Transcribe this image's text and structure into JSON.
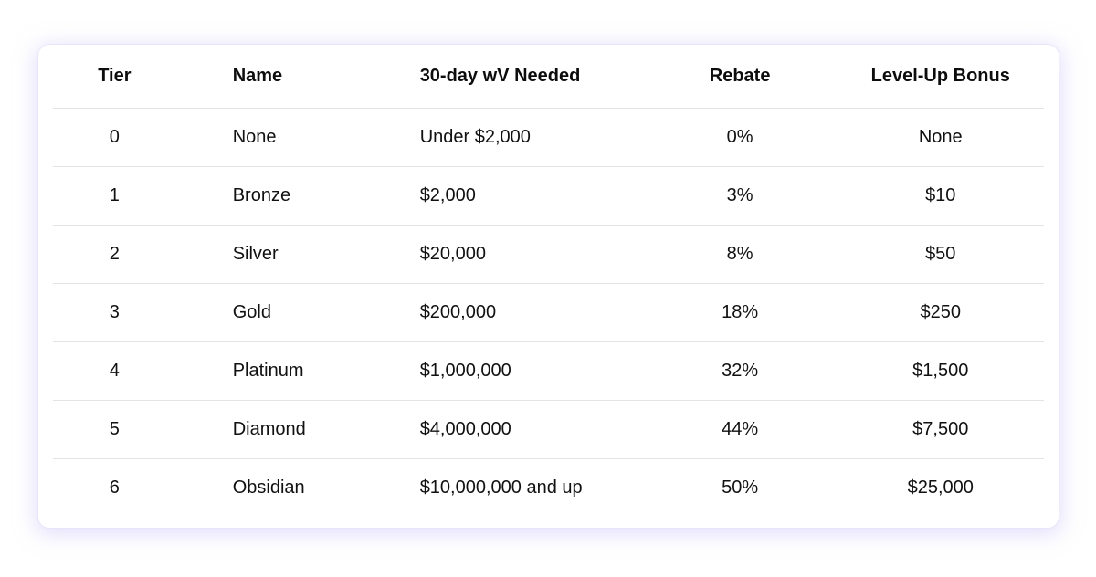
{
  "table": {
    "headers": {
      "tier": "Tier",
      "name": "Name",
      "wv": "30-day wV Needed",
      "rebate": "Rebate",
      "bonus": "Level-Up Bonus"
    },
    "rows": [
      {
        "tier": "0",
        "name": "None",
        "wv": "Under $2,000",
        "rebate": "0%",
        "bonus": "None"
      },
      {
        "tier": "1",
        "name": "Bronze",
        "wv": "$2,000",
        "rebate": "3%",
        "bonus": "$10"
      },
      {
        "tier": "2",
        "name": "Silver",
        "wv": "$20,000",
        "rebate": "8%",
        "bonus": "$50"
      },
      {
        "tier": "3",
        "name": "Gold",
        "wv": "$200,000",
        "rebate": "18%",
        "bonus": "$250"
      },
      {
        "tier": "4",
        "name": "Platinum",
        "wv": "$1,000,000",
        "rebate": "32%",
        "bonus": "$1,500"
      },
      {
        "tier": "5",
        "name": "Diamond",
        "wv": "$4,000,000",
        "rebate": "44%",
        "bonus": "$7,500"
      },
      {
        "tier": "6",
        "name": "Obsidian",
        "wv": "$10,000,000 and up",
        "rebate": "50%",
        "bonus": "$25,000"
      }
    ]
  }
}
